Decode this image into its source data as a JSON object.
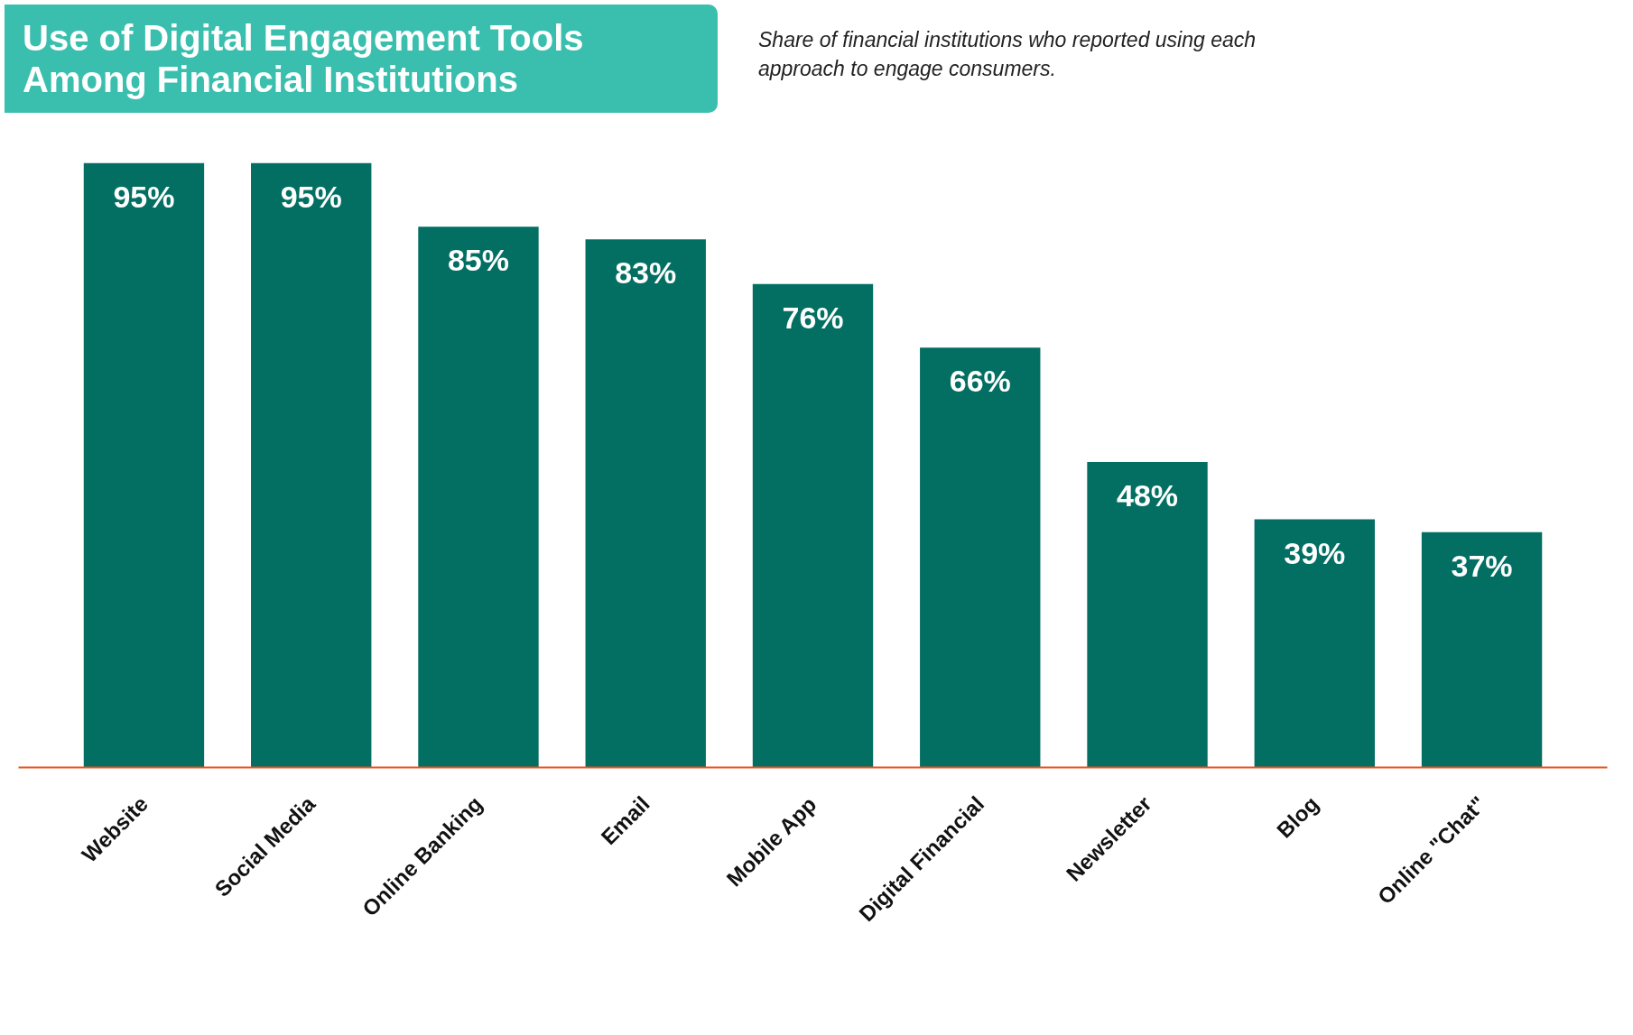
{
  "chart_data": {
    "type": "bar",
    "title": "Use of Digital Engagement Tools Among Financial Institutions",
    "subtitle": "Share of financial institutions who reported using each approach to engage consumers.",
    "categories": [
      "Website",
      "Social Media",
      "Online Banking",
      "Email",
      "Mobile App",
      "Digital Financial",
      "Newsletter",
      "Blog",
      "Online \"Chat\""
    ],
    "values": [
      95,
      95,
      85,
      83,
      76,
      66,
      48,
      39,
      37
    ],
    "value_labels": [
      "95%",
      "95%",
      "85%",
      "83%",
      "76%",
      "66%",
      "48%",
      "39%",
      "37%"
    ],
    "color": "#036f63",
    "grid": false
  }
}
